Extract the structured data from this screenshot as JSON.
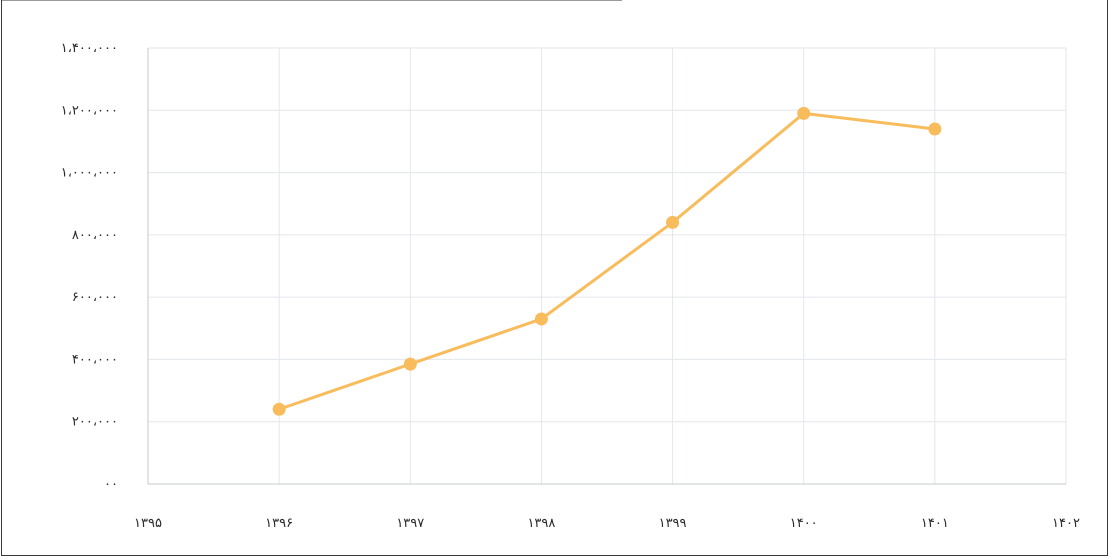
{
  "chart_data": {
    "type": "line",
    "title": "",
    "xlabel": "",
    "ylabel": "",
    "x": [
      1396,
      1397,
      1398,
      1399,
      1400,
      1401
    ],
    "series": [
      {
        "values": [
          240000,
          385000,
          530000,
          840000,
          1190000,
          1140000
        ],
        "color": "#f9bc5c"
      }
    ],
    "xlim": [
      1395,
      1402
    ],
    "ylim": [
      0,
      1400000
    ],
    "x_tick_labels": [
      "۱۳۹۵",
      "۱۳۹۶",
      "۱۳۹۷",
      "۱۳۹۸",
      "۱۳۹۹",
      "۱۴۰۰",
      "۱۴۰۱",
      "۱۴۰۲"
    ],
    "y_tick_values": [
      0,
      200000,
      400000,
      600000,
      800000,
      1000000,
      1200000,
      1400000
    ],
    "y_tick_labels": [
      "۰۰",
      "۲۰۰،۰۰۰",
      "۴۰۰،۰۰۰",
      "۶۰۰،۰۰۰",
      "۸۰۰،۰۰۰",
      "۱،۰۰۰،۰۰۰",
      "۱،۲۰۰،۰۰۰",
      "۱،۴۰۰،۰۰۰"
    ],
    "grid": true,
    "grid_color": "#e3e6ec",
    "axis_color": "#c7cad1"
  }
}
